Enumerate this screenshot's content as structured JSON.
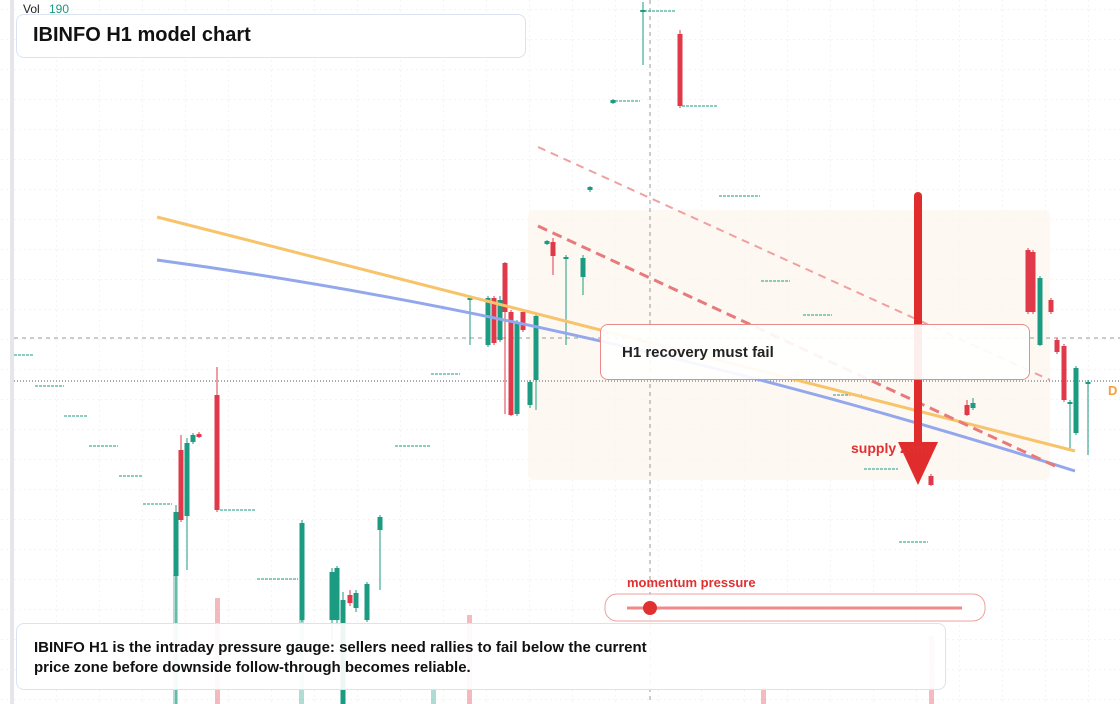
{
  "header": {
    "vol_label": "Vol",
    "vol_value": 190,
    "title": "IBINFO H1 model chart"
  },
  "annotations": {
    "callout": "H1 recovery must fail",
    "zone": "supply zone",
    "slider_label": "momentum pressure",
    "edge_label": "D"
  },
  "footer": {
    "lines": [
      "IBINFO H1 is the intraday pressure gauge: sellers need rallies to fail below the current",
      "price zone before downside follow-through becomes reliable."
    ]
  }
}
